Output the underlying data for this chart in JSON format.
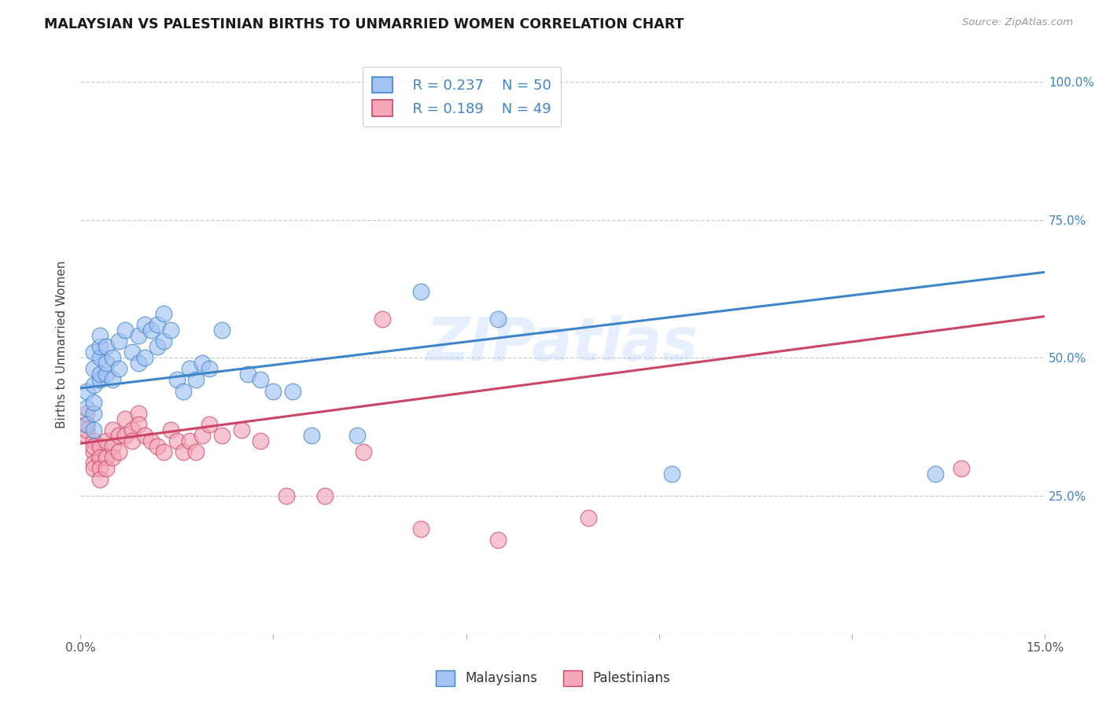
{
  "title": "MALAYSIAN VS PALESTINIAN BIRTHS TO UNMARRIED WOMEN CORRELATION CHART",
  "source": "Source: ZipAtlas.com",
  "ylabel": "Births to Unmarried Women",
  "xlim": [
    0.0,
    0.15
  ],
  "ylim": [
    0.0,
    1.05
  ],
  "xticks": [
    0.0,
    0.03,
    0.06,
    0.09,
    0.12,
    0.15
  ],
  "xticklabels": [
    "0.0%",
    "",
    "",
    "",
    "",
    "15.0%"
  ],
  "yticks_right": [
    0.0,
    0.25,
    0.5,
    0.75,
    1.0
  ],
  "ytick_labels_right": [
    "",
    "25.0%",
    "50.0%",
    "75.0%",
    "100.0%"
  ],
  "watermark": "ZIPatlas",
  "legend_r1": "R = 0.237",
  "legend_n1": "N = 50",
  "legend_r2": "R = 0.189",
  "legend_n2": "N = 49",
  "legend_label1": "Malaysians",
  "legend_label2": "Palestinians",
  "blue_color": "#a4c2f4",
  "pink_color": "#f4a7b9",
  "blue_line_color": "#3d85c8",
  "pink_line_color": "#cc4466",
  "background_color": "#ffffff",
  "grid_color": "#cccccc",
  "malaysians_x": [
    0.001,
    0.001,
    0.001,
    0.002,
    0.002,
    0.002,
    0.002,
    0.002,
    0.002,
    0.003,
    0.003,
    0.003,
    0.003,
    0.003,
    0.004,
    0.004,
    0.004,
    0.005,
    0.005,
    0.006,
    0.006,
    0.007,
    0.008,
    0.009,
    0.009,
    0.01,
    0.01,
    0.011,
    0.012,
    0.012,
    0.013,
    0.013,
    0.014,
    0.015,
    0.016,
    0.017,
    0.018,
    0.019,
    0.02,
    0.022,
    0.026,
    0.028,
    0.03,
    0.033,
    0.036,
    0.043,
    0.053,
    0.065,
    0.092,
    0.133
  ],
  "malaysians_y": [
    0.38,
    0.41,
    0.44,
    0.37,
    0.4,
    0.42,
    0.45,
    0.48,
    0.51,
    0.46,
    0.47,
    0.5,
    0.52,
    0.54,
    0.47,
    0.49,
    0.52,
    0.46,
    0.5,
    0.48,
    0.53,
    0.55,
    0.51,
    0.49,
    0.54,
    0.5,
    0.56,
    0.55,
    0.52,
    0.56,
    0.53,
    0.58,
    0.55,
    0.46,
    0.44,
    0.48,
    0.46,
    0.49,
    0.48,
    0.55,
    0.47,
    0.46,
    0.44,
    0.44,
    0.36,
    0.36,
    0.62,
    0.57,
    0.29,
    0.29
  ],
  "palestinians_x": [
    0.001,
    0.001,
    0.001,
    0.001,
    0.002,
    0.002,
    0.002,
    0.002,
    0.002,
    0.003,
    0.003,
    0.003,
    0.003,
    0.004,
    0.004,
    0.004,
    0.005,
    0.005,
    0.005,
    0.006,
    0.006,
    0.007,
    0.007,
    0.008,
    0.008,
    0.009,
    0.009,
    0.01,
    0.011,
    0.012,
    0.013,
    0.014,
    0.015,
    0.016,
    0.017,
    0.018,
    0.019,
    0.02,
    0.022,
    0.025,
    0.028,
    0.032,
    0.038,
    0.044,
    0.047,
    0.053,
    0.065,
    0.079,
    0.137
  ],
  "palestinians_y": [
    0.36,
    0.38,
    0.4,
    0.37,
    0.35,
    0.33,
    0.31,
    0.34,
    0.3,
    0.34,
    0.32,
    0.3,
    0.28,
    0.35,
    0.32,
    0.3,
    0.37,
    0.34,
    0.32,
    0.36,
    0.33,
    0.39,
    0.36,
    0.37,
    0.35,
    0.4,
    0.38,
    0.36,
    0.35,
    0.34,
    0.33,
    0.37,
    0.35,
    0.33,
    0.35,
    0.33,
    0.36,
    0.38,
    0.36,
    0.37,
    0.35,
    0.25,
    0.25,
    0.33,
    0.57,
    0.19,
    0.17,
    0.21,
    0.3
  ],
  "blue_line_x": [
    0.0,
    0.15
  ],
  "blue_line_y": [
    0.445,
    0.655
  ],
  "pink_line_x": [
    0.0,
    0.15
  ],
  "pink_line_y": [
    0.345,
    0.575
  ]
}
